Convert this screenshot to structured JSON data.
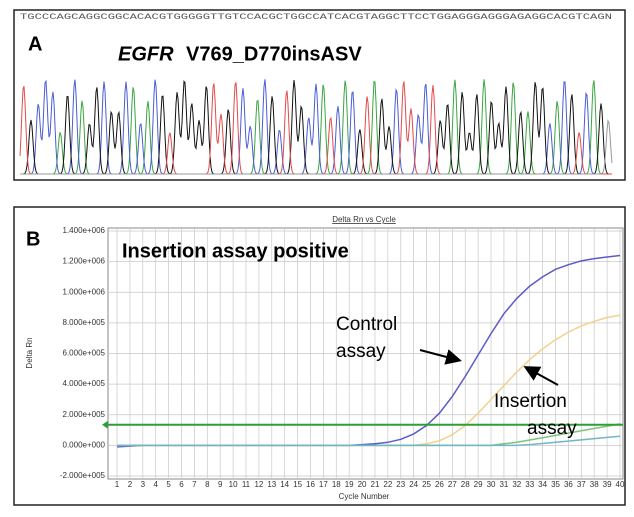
{
  "panel_a": {
    "label": "A",
    "title_gene": "EGFR",
    "title_variant": "V769_D770insASV",
    "sequence": "TGCCCAGCAGGCGGCACACGTGGGGGTTGTCCACGCTGGCCATCACGTAGGCTTCCTGGAGGGAGGGAGAGGCACGTCAGN"
  },
  "panel_b_label": "B",
  "chart_data": {
    "type": "line",
    "title": "Delta Rn vs Cycle",
    "x_label": "Cycle Number",
    "y_label": "Delta Rn",
    "annotations": [
      "Insertion assay positive",
      [
        "Control",
        "assay"
      ],
      [
        "Insertion",
        "assay"
      ]
    ],
    "x": [
      1,
      2,
      3,
      4,
      5,
      6,
      7,
      8,
      9,
      10,
      11,
      12,
      13,
      14,
      15,
      16,
      17,
      18,
      19,
      20,
      21,
      22,
      23,
      24,
      25,
      26,
      27,
      28,
      29,
      30,
      31,
      32,
      33,
      34,
      35,
      36,
      37,
      38,
      39,
      40
    ],
    "xlim": [
      0.3,
      40
    ],
    "xticks": [
      1,
      2,
      3,
      4,
      5,
      6,
      7,
      8,
      9,
      10,
      11,
      12,
      13,
      14,
      15,
      16,
      17,
      18,
      19,
      20,
      21,
      22,
      23,
      24,
      25,
      26,
      27,
      28,
      29,
      30,
      31,
      32,
      33,
      34,
      35,
      36,
      37,
      38,
      39,
      40
    ],
    "ylim": [
      -200000,
      1400000
    ],
    "yticks": [
      {
        "value": -200000,
        "label": "-2.000e+005"
      },
      {
        "value": 0,
        "label": "0.000e+000"
      },
      {
        "value": 200000,
        "label": "2.000e+005"
      },
      {
        "value": 400000,
        "label": "4.000e+005"
      },
      {
        "value": 600000,
        "label": "6.000e+005"
      },
      {
        "value": 800000,
        "label": "8.000e+005"
      },
      {
        "value": 1000000,
        "label": "1.000e+006"
      },
      {
        "value": 1200000,
        "label": "1.200e+006"
      },
      {
        "value": 1400000,
        "label": "1.400e+006"
      }
    ],
    "grid": true,
    "threshold": 135000,
    "threshold_color": "#2e9e3a",
    "series": [
      {
        "color": "#5b5bc9",
        "values": [
          -10000,
          -5000,
          0,
          0,
          0,
          0,
          0,
          0,
          0,
          0,
          0,
          0,
          0,
          0,
          0,
          0,
          0,
          0,
          0,
          5000,
          10000,
          20000,
          40000,
          75000,
          130000,
          210000,
          320000,
          450000,
          590000,
          730000,
          860000,
          960000,
          1040000,
          1100000,
          1150000,
          1180000,
          1205000,
          1220000,
          1230000,
          1240000
        ]
      },
      {
        "color": "#f5d08c",
        "values": [
          0,
          0,
          0,
          0,
          0,
          0,
          0,
          0,
          0,
          0,
          0,
          0,
          0,
          0,
          0,
          0,
          0,
          0,
          0,
          0,
          0,
          0,
          0,
          0,
          10000,
          30000,
          70000,
          130000,
          210000,
          300000,
          390000,
          480000,
          560000,
          630000,
          690000,
          740000,
          780000,
          810000,
          835000,
          850000
        ]
      },
      {
        "color": "#7cc47a",
        "values": [
          0,
          0,
          0,
          0,
          0,
          0,
          0,
          0,
          0,
          0,
          0,
          0,
          0,
          0,
          0,
          0,
          0,
          0,
          0,
          0,
          0,
          0,
          0,
          0,
          0,
          0,
          0,
          0,
          0,
          0,
          10000,
          20000,
          35000,
          50000,
          65000,
          80000,
          95000,
          110000,
          125000,
          140000
        ]
      },
      {
        "color": "#6fb6c8",
        "values": [
          0,
          0,
          0,
          0,
          0,
          0,
          0,
          0,
          0,
          0,
          0,
          0,
          0,
          0,
          0,
          0,
          0,
          0,
          0,
          0,
          0,
          0,
          0,
          0,
          0,
          0,
          0,
          0,
          0,
          0,
          0,
          0,
          5000,
          12000,
          20000,
          28000,
          36000,
          44000,
          52000,
          60000
        ]
      }
    ]
  }
}
